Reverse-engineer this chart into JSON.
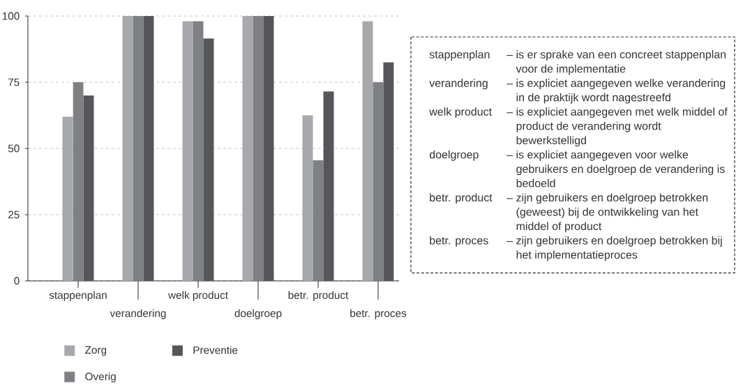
{
  "chart_data": {
    "type": "bar",
    "categories": [
      "stappenplan",
      "verandering",
      "welk product",
      "doelgroep",
      "betr. product",
      "betr. proces"
    ],
    "series": [
      {
        "name": "Zorg",
        "color": "#a7a8ab",
        "values": [
          62,
          100,
          98,
          100,
          62.5,
          98
        ]
      },
      {
        "name": "Overig",
        "color": "#7f8084",
        "values": [
          75,
          100,
          98,
          100,
          45.5,
          75
        ]
      },
      {
        "name": "Preventie",
        "color": "#55565a",
        "values": [
          70,
          100,
          91.5,
          100,
          71.5,
          82.5
        ]
      }
    ],
    "ylim": [
      0,
      100
    ],
    "yticks": [
      0,
      25,
      50,
      75,
      100
    ],
    "grid": "y",
    "legend": "bottom",
    "annotations": [
      "stappenplan",
      "– is er sprake van een concreet stappenplan voor de implementatie",
      "verandering",
      "– is expliciet aangegeven welke verandering in de praktijk wordt nagestreefd",
      "welk product",
      "– is expliciet aangegeven met welk middel of product de verandering wordt bewerkstelligd",
      "doelgroep",
      "– is expliciet aangegeven voor welke gebruikers en doelgroep de verandering is bedoeld",
      "betr. product",
      "– zijn gebruikers en doelgroep betrokken (geweest) bij de ontwikkeling van het middel of product",
      "betr. proces",
      "– zijn gebruikers en doelgroep betrokken bij het implementatieproces"
    ]
  }
}
